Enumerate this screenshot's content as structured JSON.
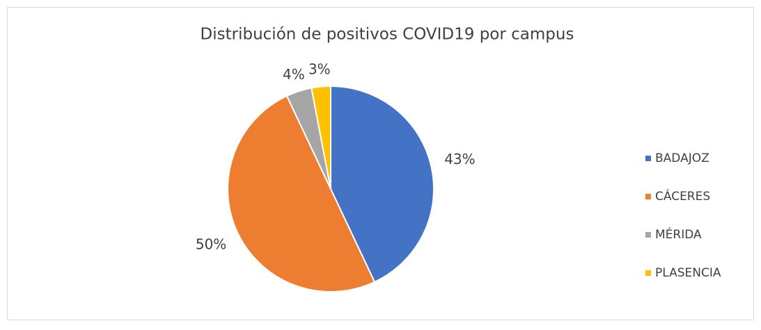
{
  "chart_data": {
    "type": "pie",
    "title": "Distribución de positivos COVID19 por campus",
    "categories": [
      "BADAJOZ",
      "CÁCERES",
      "MÉRIDA",
      "PLASENCIA"
    ],
    "values": [
      43,
      50,
      4,
      3
    ],
    "value_labels": [
      "43%",
      "50%",
      "4%",
      "3%"
    ],
    "colors": [
      "#4472c4",
      "#ed7d31",
      "#a5a5a5",
      "#ffc000"
    ],
    "legend": "right"
  }
}
